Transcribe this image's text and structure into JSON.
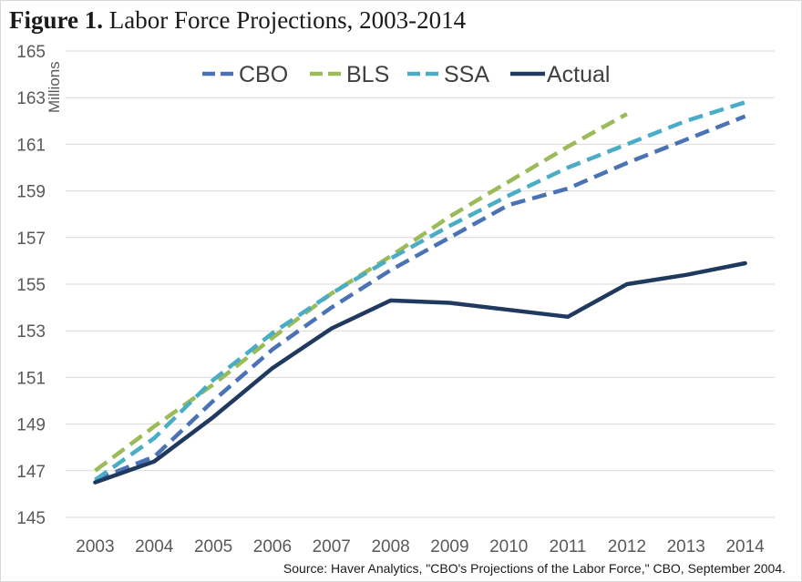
{
  "title": {
    "bold": "Figure 1.",
    "text": "Labor Force Projections, 2003-2014"
  },
  "source": "Source: Haver Analytics, \"CBO's Projections of the Labor Force,\" CBO, September 2004.",
  "chart_data": {
    "type": "line",
    "title": "Figure 1. Labor Force Projections, 2003-2014",
    "xlabel": "",
    "ylabel": "Millions",
    "x": [
      2003,
      2004,
      2005,
      2006,
      2007,
      2008,
      2009,
      2010,
      2011,
      2012,
      2013,
      2014
    ],
    "ylim": [
      145,
      165
    ],
    "yticks": [
      145,
      147,
      149,
      151,
      153,
      155,
      157,
      159,
      161,
      163,
      165
    ],
    "grid": "horizontal",
    "legend": "top",
    "series": [
      {
        "name": "CBO",
        "color": "#4a72b5",
        "style": "dashed",
        "values": [
          146.6,
          147.6,
          150.0,
          152.2,
          154.0,
          155.6,
          157.0,
          158.4,
          159.1,
          160.2,
          161.2,
          162.2
        ]
      },
      {
        "name": "BLS",
        "color": "#9bbb59",
        "style": "dashed",
        "values": [
          147.0,
          148.9,
          150.7,
          152.7,
          154.6,
          156.2,
          157.9,
          159.4,
          160.9,
          162.3,
          null,
          null
        ]
      },
      {
        "name": "SSA",
        "color": "#4bacc6",
        "style": "dashed",
        "values": [
          146.6,
          148.4,
          150.9,
          152.9,
          154.6,
          156.1,
          157.5,
          158.8,
          160.0,
          161.0,
          162.0,
          162.8
        ]
      },
      {
        "name": "Actual",
        "color": "#203a5f",
        "style": "solid",
        "values": [
          146.5,
          147.4,
          149.3,
          151.4,
          153.1,
          154.3,
          154.2,
          153.9,
          153.6,
          155.0,
          155.4,
          155.9
        ]
      }
    ]
  }
}
